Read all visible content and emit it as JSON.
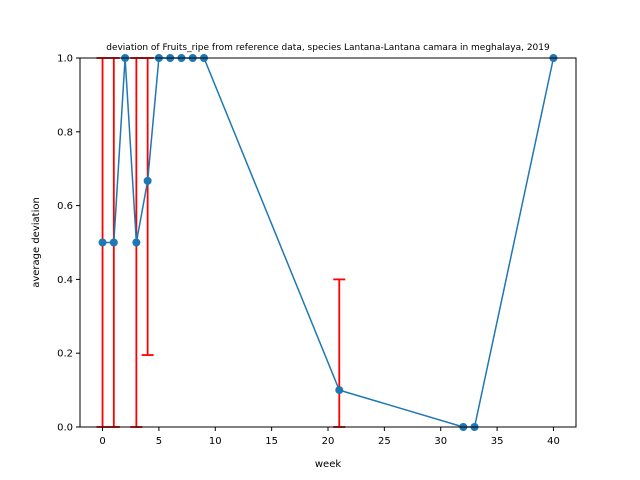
{
  "chart_data": {
    "type": "line",
    "title": "deviation of Fruits_ripe from reference data, species Lantana-Lantana camara in meghalaya, 2019",
    "xlabel": "week",
    "ylabel": "average deviation",
    "xlim": [
      -2,
      42
    ],
    "ylim": [
      0,
      1
    ],
    "xticks": [
      0,
      5,
      10,
      15,
      20,
      25,
      30,
      35,
      40
    ],
    "yticks": [
      0.0,
      0.2,
      0.4,
      0.6,
      0.8,
      1.0
    ],
    "xtick_labels": [
      "0",
      "5",
      "10",
      "15",
      "20",
      "25",
      "30",
      "35",
      "40"
    ],
    "ytick_labels": [
      "0.0",
      "0.2",
      "0.4",
      "0.6",
      "0.8",
      "1.0"
    ],
    "grid": false,
    "line_color": "#1f77b4",
    "errorbar_color": "#ff0000",
    "series": [
      {
        "x": [
          0,
          1,
          2,
          3,
          4,
          5,
          6,
          7,
          8,
          9,
          21,
          32,
          33,
          40
        ],
        "values": [
          0.5,
          0.5,
          1.0,
          0.5,
          0.667,
          1.0,
          1.0,
          1.0,
          1.0,
          1.0,
          0.1,
          0.0,
          0.0,
          1.0
        ],
        "error_low": [
          0.0,
          0.0,
          1.0,
          0.0,
          0.195,
          1.0,
          1.0,
          1.0,
          1.0,
          1.0,
          0.0,
          0.0,
          0.0,
          1.0
        ],
        "error_high": [
          1.0,
          1.0,
          1.0,
          1.0,
          1.0,
          1.0,
          1.0,
          1.0,
          1.0,
          1.0,
          0.4,
          0.0,
          0.0,
          1.0
        ]
      }
    ]
  }
}
